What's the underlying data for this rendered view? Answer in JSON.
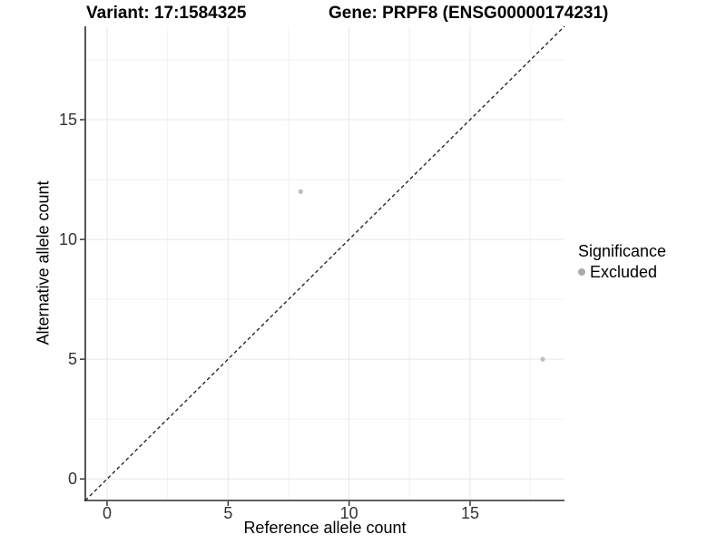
{
  "header": {
    "title_left": "Variant: 17:1584325",
    "title_right": "Gene: PRPF8 (ENSG00000174231)"
  },
  "chart_data": {
    "type": "scatter",
    "title_left": "Variant: 17:1584325",
    "title_right": "Gene: PRPF8 (ENSG00000174231)",
    "xlabel": "Reference allele count",
    "ylabel": "Alternative allele count",
    "xlim": [
      -0.9,
      18.9
    ],
    "ylim": [
      -0.9,
      18.9
    ],
    "x_ticks": [
      0,
      5,
      10,
      15
    ],
    "y_ticks": [
      0,
      5,
      10,
      15
    ],
    "x_minor_ticks": [
      2.5,
      7.5,
      12.5,
      17.5
    ],
    "y_minor_ticks": [
      2.5,
      7.5,
      12.5,
      17.5
    ],
    "grid": {
      "major": true,
      "minor": true
    },
    "identity_line": {
      "show": true,
      "equation": "y = x",
      "style": "dashed",
      "color": "#1a1a1a"
    },
    "series": [
      {
        "name": "Excluded",
        "color": "#bebebe",
        "points": [
          {
            "x": 8,
            "y": 12
          },
          {
            "x": 18,
            "y": 5
          }
        ]
      }
    ],
    "legend": {
      "title": "Significance",
      "position": "right",
      "entries": [
        {
          "label": "Excluded",
          "color": "#aaaaaa",
          "marker": "circle"
        }
      ]
    }
  },
  "colors": {
    "background": "#ffffff",
    "axis_line": "#2b2b2b",
    "grid_major": "#e7e7e7",
    "grid_minor": "#f2f2f2",
    "tick_text": "#333333"
  }
}
